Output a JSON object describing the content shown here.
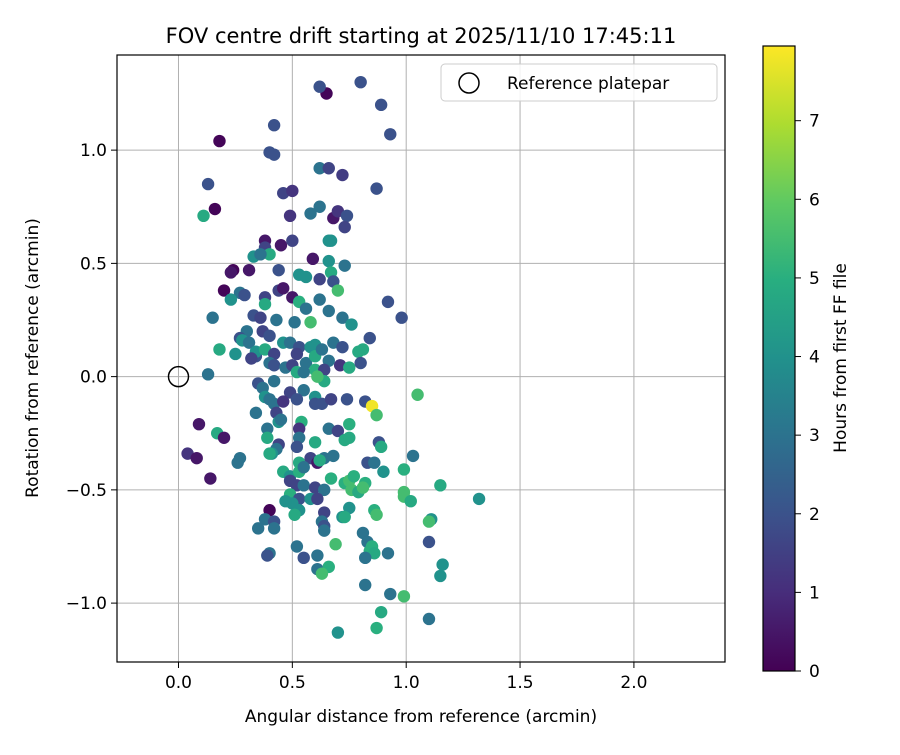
{
  "chart_data": {
    "type": "scatter",
    "title": "FOV centre drift starting at 2025/11/10 17:45:11",
    "xlabel": "Angular distance from reference (arcmin)",
    "ylabel": "Rotation from reference (arcmin)",
    "xlim": [
      -0.27,
      2.4
    ],
    "ylim": [
      -1.26,
      1.42
    ],
    "xticks": [
      {
        "value": 0.0,
        "label": "0.0"
      },
      {
        "value": 0.5,
        "label": "0.5"
      },
      {
        "value": 1.0,
        "label": "1.0"
      },
      {
        "value": 1.5,
        "label": "1.5"
      },
      {
        "value": 2.0,
        "label": "2.0"
      }
    ],
    "yticks": [
      {
        "value": -1.0,
        "label": "−1.0"
      },
      {
        "value": -0.5,
        "label": "−0.5"
      },
      {
        "value": 0.0,
        "label": "0.0"
      },
      {
        "value": 0.5,
        "label": "0.5"
      },
      {
        "value": 1.0,
        "label": "1.0"
      }
    ],
    "grid": true,
    "legend": {
      "position": "top-right",
      "entries": [
        "Reference platepar"
      ]
    },
    "reference_point": {
      "x": 0.0,
      "y": 0.0,
      "label": "Reference platepar"
    },
    "colorbar": {
      "label": "Hours from first FF file",
      "range": [
        0,
        7.95
      ],
      "ticks": [
        "0",
        "1",
        "2",
        "3",
        "4",
        "5",
        "6",
        "7"
      ],
      "colormap": "viridis"
    },
    "points": [
      [
        0.65,
        1.25,
        0.1
      ],
      [
        0.62,
        1.28,
        2.0
      ],
      [
        0.8,
        1.3,
        2.0
      ],
      [
        0.89,
        1.2,
        2.0
      ],
      [
        0.42,
        1.11,
        2.0
      ],
      [
        0.93,
        1.07,
        2.0
      ],
      [
        0.18,
        1.04,
        0.1
      ],
      [
        0.4,
        0.99,
        2.0
      ],
      [
        0.42,
        0.98,
        2.0
      ],
      [
        0.62,
        0.92,
        3.0
      ],
      [
        0.66,
        0.92,
        1.6
      ],
      [
        0.72,
        0.89,
        1.4
      ],
      [
        0.13,
        0.85,
        2.0
      ],
      [
        0.87,
        0.83,
        2.0
      ],
      [
        0.46,
        0.81,
        1.6
      ],
      [
        0.5,
        0.82,
        1.2
      ],
      [
        0.16,
        0.74,
        0.1
      ],
      [
        0.11,
        0.71,
        4.8
      ],
      [
        0.49,
        0.71,
        1.2
      ],
      [
        0.62,
        0.75,
        3.0
      ],
      [
        0.58,
        0.72,
        3.0
      ],
      [
        0.68,
        0.7,
        0.5
      ],
      [
        0.7,
        0.73,
        1.2
      ],
      [
        0.74,
        0.71,
        2.0
      ],
      [
        0.73,
        0.66,
        1.6
      ],
      [
        0.66,
        0.6,
        4.0
      ],
      [
        0.67,
        0.6,
        4.0
      ],
      [
        0.38,
        0.6,
        0.5
      ],
      [
        0.45,
        0.58,
        0.5
      ],
      [
        0.5,
        0.6,
        1.6
      ],
      [
        0.38,
        0.57,
        1.6
      ],
      [
        0.4,
        0.54,
        4.8
      ],
      [
        0.33,
        0.53,
        4.0
      ],
      [
        0.36,
        0.54,
        3.0
      ],
      [
        0.24,
        0.47,
        0.1
      ],
      [
        0.23,
        0.46,
        0.5
      ],
      [
        0.31,
        0.47,
        0.5
      ],
      [
        0.44,
        0.47,
        2.0
      ],
      [
        0.59,
        0.52,
        0.5
      ],
      [
        0.66,
        0.51,
        4.0
      ],
      [
        0.53,
        0.45,
        4.0
      ],
      [
        0.56,
        0.44,
        4.0
      ],
      [
        0.62,
        0.43,
        1.6
      ],
      [
        0.67,
        0.46,
        4.8
      ],
      [
        0.68,
        0.42,
        2.0
      ],
      [
        0.73,
        0.49,
        3.0
      ],
      [
        0.2,
        0.38,
        0.1
      ],
      [
        0.27,
        0.37,
        3.0
      ],
      [
        0.29,
        0.36,
        2.0
      ],
      [
        0.23,
        0.34,
        4.0
      ],
      [
        0.38,
        0.35,
        1.6
      ],
      [
        0.44,
        0.38,
        1.6
      ],
      [
        0.46,
        0.39,
        0.5
      ],
      [
        0.5,
        0.35,
        0.5
      ],
      [
        0.53,
        0.33,
        5.0
      ],
      [
        0.62,
        0.34,
        3.0
      ],
      [
        0.56,
        0.3,
        3.0
      ],
      [
        0.7,
        0.38,
        5.5
      ],
      [
        0.92,
        0.33,
        2.0
      ],
      [
        0.38,
        0.32,
        4.8
      ],
      [
        0.33,
        0.27,
        2.0
      ],
      [
        0.36,
        0.26,
        1.6
      ],
      [
        0.43,
        0.25,
        3.0
      ],
      [
        0.51,
        0.24,
        3.0
      ],
      [
        0.58,
        0.24,
        5.5
      ],
      [
        0.66,
        0.29,
        3.0
      ],
      [
        0.72,
        0.26,
        3.0
      ],
      [
        0.76,
        0.23,
        4.0
      ],
      [
        0.98,
        0.26,
        2.0
      ],
      [
        0.15,
        0.26,
        3.0
      ],
      [
        0.3,
        0.2,
        3.0
      ],
      [
        0.37,
        0.2,
        1.6
      ],
      [
        0.4,
        0.18,
        2.0
      ],
      [
        0.27,
        0.17,
        2.0
      ],
      [
        0.28,
        0.16,
        4.0
      ],
      [
        0.31,
        0.15,
        3.0
      ],
      [
        0.46,
        0.15,
        4.0
      ],
      [
        0.49,
        0.15,
        3.0
      ],
      [
        0.53,
        0.13,
        2.0
      ],
      [
        0.58,
        0.13,
        4.0
      ],
      [
        0.6,
        0.14,
        4.0
      ],
      [
        0.68,
        0.15,
        3.0
      ],
      [
        0.72,
        0.13,
        2.0
      ],
      [
        0.84,
        0.17,
        2.0
      ],
      [
        0.18,
        0.12,
        4.8
      ],
      [
        0.25,
        0.1,
        4.0
      ],
      [
        0.34,
        0.09,
        2.0
      ],
      [
        0.34,
        0.11,
        4.0
      ],
      [
        0.38,
        0.12,
        4.8
      ],
      [
        0.42,
        0.1,
        1.6
      ],
      [
        0.52,
        0.1,
        1.6
      ],
      [
        0.56,
        0.06,
        3.0
      ],
      [
        0.6,
        0.09,
        4.8
      ],
      [
        0.63,
        0.12,
        3.0
      ],
      [
        0.66,
        0.07,
        3.0
      ],
      [
        0.79,
        0.11,
        4.8
      ],
      [
        0.81,
        0.12,
        4.8
      ],
      [
        0.32,
        0.08,
        1.6
      ],
      [
        0.4,
        0.06,
        3.0
      ],
      [
        0.42,
        0.05,
        2.0
      ],
      [
        0.47,
        0.04,
        3.0
      ],
      [
        0.5,
        0.05,
        1.6
      ],
      [
        0.6,
        0.03,
        5.0
      ],
      [
        0.64,
        0.03,
        1.6
      ],
      [
        0.71,
        0.05,
        1.2
      ],
      [
        0.75,
        0.04,
        4.8
      ],
      [
        0.8,
        0.06,
        2.0
      ],
      [
        0.13,
        0.01,
        3.0
      ],
      [
        0.52,
        0.02,
        4.8
      ],
      [
        0.55,
        0.02,
        3.0
      ],
      [
        0.64,
        -0.02,
        4.8
      ],
      [
        0.61,
        0.0,
        5.5
      ],
      [
        0.35,
        -0.03,
        2.0
      ],
      [
        0.37,
        -0.05,
        3.0
      ],
      [
        0.42,
        -0.02,
        3.0
      ],
      [
        0.49,
        -0.07,
        1.6
      ],
      [
        0.55,
        -0.06,
        3.0
      ],
      [
        0.6,
        -0.09,
        4.0
      ],
      [
        0.38,
        -0.09,
        4.0
      ],
      [
        0.4,
        -0.1,
        3.0
      ],
      [
        0.42,
        -0.12,
        3.0
      ],
      [
        0.46,
        -0.11,
        1.2
      ],
      [
        0.52,
        -0.1,
        2.0
      ],
      [
        0.6,
        -0.12,
        2.0
      ],
      [
        0.63,
        -0.12,
        2.0
      ],
      [
        0.67,
        -0.1,
        1.6
      ],
      [
        0.74,
        -0.1,
        2.0
      ],
      [
        0.82,
        -0.11,
        2.0
      ],
      [
        0.85,
        -0.13,
        7.8
      ],
      [
        0.87,
        -0.17,
        5.5
      ],
      [
        1.05,
        -0.08,
        5.5
      ],
      [
        0.34,
        -0.16,
        3.0
      ],
      [
        0.43,
        -0.16,
        1.6
      ],
      [
        0.44,
        -0.2,
        4.0
      ],
      [
        0.45,
        -0.19,
        3.0
      ],
      [
        0.54,
        -0.2,
        5.0
      ],
      [
        0.53,
        -0.23,
        1.2
      ],
      [
        0.66,
        -0.23,
        3.0
      ],
      [
        0.7,
        -0.24,
        1.6
      ],
      [
        0.73,
        -0.28,
        4.8
      ],
      [
        0.75,
        -0.21,
        5.0
      ],
      [
        0.75,
        -0.27,
        4.8
      ],
      [
        0.09,
        -0.21,
        0.5
      ],
      [
        0.17,
        -0.25,
        4.8
      ],
      [
        0.2,
        -0.27,
        0.5
      ],
      [
        0.39,
        -0.23,
        3.0
      ],
      [
        0.39,
        -0.27,
        4.8
      ],
      [
        0.53,
        -0.27,
        3.0
      ],
      [
        0.52,
        -0.31,
        2.0
      ],
      [
        0.6,
        -0.29,
        4.8
      ],
      [
        0.88,
        -0.29,
        2.0
      ],
      [
        0.89,
        -0.31,
        4.8
      ],
      [
        0.44,
        -0.3,
        1.6
      ],
      [
        0.43,
        -0.32,
        3.0
      ],
      [
        0.41,
        -0.34,
        4.0
      ],
      [
        0.4,
        -0.34,
        4.8
      ],
      [
        0.04,
        -0.34,
        1.2
      ],
      [
        0.08,
        -0.36,
        0.5
      ],
      [
        0.27,
        -0.36,
        3.0
      ],
      [
        0.26,
        -0.38,
        3.0
      ],
      [
        0.53,
        -0.38,
        4.8
      ],
      [
        0.58,
        -0.36,
        1.6
      ],
      [
        0.61,
        -0.38,
        0.5
      ],
      [
        0.64,
        -0.36,
        3.0
      ],
      [
        0.68,
        -0.35,
        3.0
      ],
      [
        0.83,
        -0.38,
        2.0
      ],
      [
        0.86,
        -0.38,
        3.0
      ],
      [
        0.99,
        -0.41,
        5.0
      ],
      [
        1.03,
        -0.35,
        3.0
      ],
      [
        0.46,
        -0.42,
        4.8
      ],
      [
        0.49,
        -0.44,
        4.0
      ],
      [
        0.53,
        -0.42,
        5.0
      ],
      [
        0.55,
        -0.4,
        3.0
      ],
      [
        0.62,
        -0.37,
        4.8
      ],
      [
        0.67,
        -0.45,
        5.0
      ],
      [
        0.73,
        -0.47,
        5.0
      ],
      [
        0.75,
        -0.46,
        5.5
      ],
      [
        0.77,
        -0.44,
        5.0
      ],
      [
        0.82,
        -0.47,
        5.0
      ],
      [
        0.9,
        -0.42,
        4.0
      ],
      [
        0.14,
        -0.45,
        0.5
      ],
      [
        0.49,
        -0.46,
        1.6
      ],
      [
        0.52,
        -0.48,
        1.6
      ],
      [
        0.55,
        -0.48,
        3.0
      ],
      [
        0.6,
        -0.49,
        1.6
      ],
      [
        0.64,
        -0.5,
        3.0
      ],
      [
        0.76,
        -0.5,
        5.5
      ],
      [
        0.79,
        -0.51,
        4.8
      ],
      [
        0.81,
        -0.49,
        5.5
      ],
      [
        1.15,
        -0.48,
        4.8
      ],
      [
        1.32,
        -0.54,
        4.0
      ],
      [
        0.49,
        -0.52,
        5.0
      ],
      [
        0.53,
        -0.54,
        2.0
      ],
      [
        0.58,
        -0.54,
        4.0
      ],
      [
        0.61,
        -0.54,
        1.6
      ],
      [
        0.5,
        -0.56,
        4.0
      ],
      [
        0.47,
        -0.55,
        4.0
      ],
      [
        0.53,
        -0.59,
        4.0
      ],
      [
        0.51,
        -0.61,
        4.8
      ],
      [
        0.4,
        -0.59,
        0.1
      ],
      [
        0.64,
        -0.6,
        1.6
      ],
      [
        0.72,
        -0.62,
        4.0
      ],
      [
        0.75,
        -0.58,
        4.0
      ],
      [
        0.73,
        -0.62,
        4.8
      ],
      [
        0.86,
        -0.59,
        5.0
      ],
      [
        0.87,
        -0.61,
        5.5
      ],
      [
        0.99,
        -0.51,
        5.5
      ],
      [
        0.99,
        -0.53,
        5.5
      ],
      [
        1.02,
        -0.55,
        4.8
      ],
      [
        1.11,
        -0.63,
        4.0
      ],
      [
        1.1,
        -0.64,
        5.5
      ],
      [
        0.38,
        -0.63,
        3.0
      ],
      [
        0.42,
        -0.64,
        2.0
      ],
      [
        0.35,
        -0.67,
        3.0
      ],
      [
        0.42,
        -0.67,
        3.0
      ],
      [
        0.63,
        -0.64,
        3.0
      ],
      [
        0.64,
        -0.66,
        2.0
      ],
      [
        0.64,
        -0.68,
        3.0
      ],
      [
        0.81,
        -0.69,
        3.0
      ],
      [
        0.83,
        -0.73,
        3.0
      ],
      [
        0.85,
        -0.75,
        5.0
      ],
      [
        1.1,
        -0.73,
        2.0
      ],
      [
        0.52,
        -0.75,
        3.0
      ],
      [
        0.69,
        -0.74,
        5.5
      ],
      [
        0.84,
        -0.77,
        5.0
      ],
      [
        0.86,
        -0.78,
        4.8
      ],
      [
        0.92,
        -0.78,
        3.0
      ],
      [
        0.4,
        -0.78,
        3.0
      ],
      [
        0.39,
        -0.79,
        2.0
      ],
      [
        0.55,
        -0.8,
        2.0
      ],
      [
        0.61,
        -0.79,
        3.0
      ],
      [
        0.82,
        -0.8,
        3.0
      ],
      [
        1.16,
        -0.83,
        4.0
      ],
      [
        0.61,
        -0.85,
        3.0
      ],
      [
        0.66,
        -0.84,
        5.0
      ],
      [
        0.63,
        -0.87,
        5.5
      ],
      [
        1.15,
        -0.88,
        4.0
      ],
      [
        0.82,
        -0.92,
        3.0
      ],
      [
        0.93,
        -0.96,
        3.0
      ],
      [
        0.99,
        -0.97,
        5.5
      ],
      [
        0.89,
        -1.04,
        4.8
      ],
      [
        0.87,
        -1.11,
        5.0
      ],
      [
        1.1,
        -1.07,
        3.0
      ],
      [
        0.7,
        -1.13,
        4.0
      ]
    ]
  }
}
